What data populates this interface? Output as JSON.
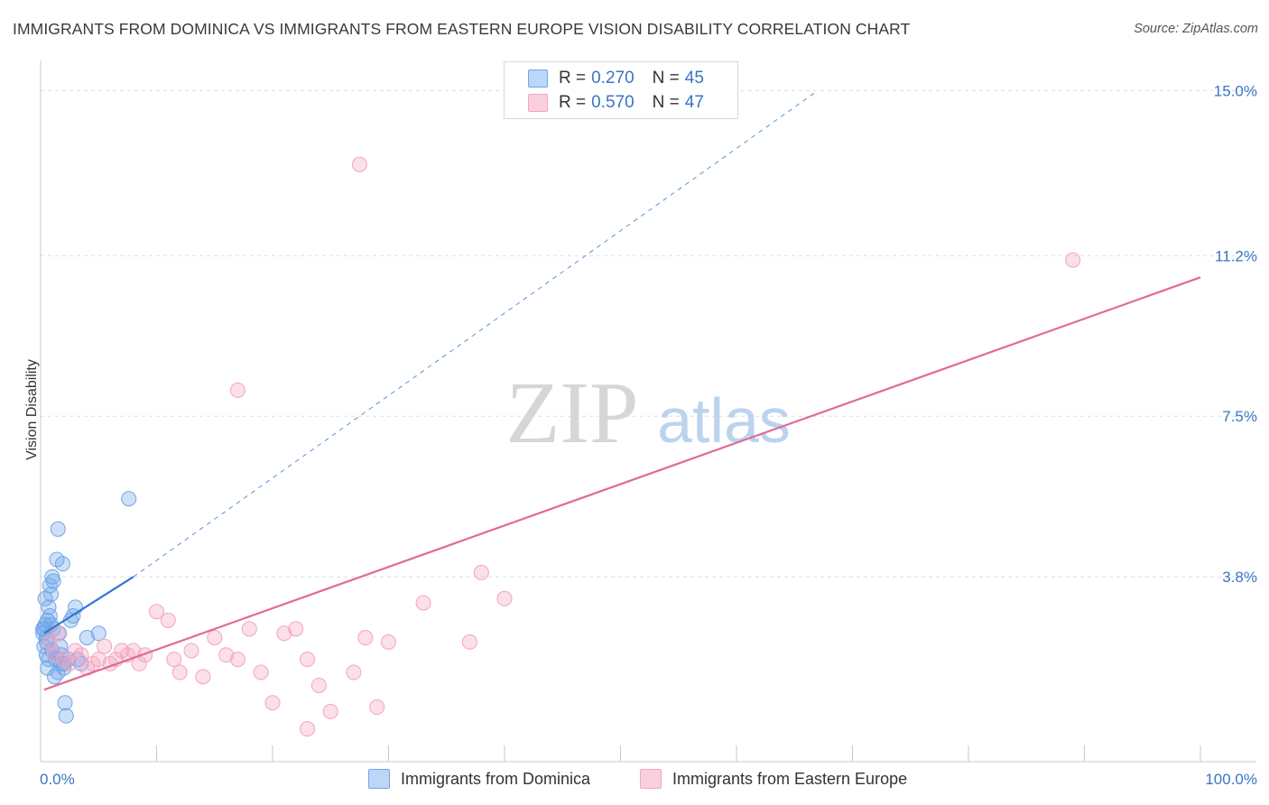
{
  "title": "IMMIGRANTS FROM DOMINICA VS IMMIGRANTS FROM EASTERN EUROPE VISION DISABILITY CORRELATION CHART",
  "source": "Source: ZipAtlas.com",
  "watermark": {
    "zip": "ZIP",
    "atlas": "atlas"
  },
  "legend": {
    "r_label": "R =",
    "n_label": "N =",
    "rows": [
      {
        "r": "0.270",
        "n": "45"
      },
      {
        "r": "0.570",
        "n": "47"
      }
    ]
  },
  "chart_data": {
    "type": "scatter",
    "ylabel": "Vision Disability",
    "xlim": [
      0,
      100
    ],
    "ylim": [
      0,
      15.8
    ],
    "x_tick_labels": {
      "left": "0.0%",
      "right": "100.0%"
    },
    "y_ticks": [
      {
        "value": 3.8,
        "label": "3.8%"
      },
      {
        "value": 7.5,
        "label": "7.5%"
      },
      {
        "value": 11.2,
        "label": "11.2%"
      },
      {
        "value": 15.0,
        "label": "15.0%"
      }
    ],
    "series": [
      {
        "name": "Immigrants from Dominica",
        "color": "#6fa6e8",
        "line_color": "#2f78d0",
        "trend_solid": [
          [
            0.3,
            2.5
          ],
          [
            8.0,
            3.8
          ]
        ],
        "trend_dashed": [
          [
            8.0,
            3.8
          ],
          [
            67.0,
            15.0
          ]
        ],
        "points": [
          [
            0.2,
            2.5
          ],
          [
            0.3,
            2.6
          ],
          [
            0.4,
            2.7
          ],
          [
            0.5,
            2.3
          ],
          [
            0.5,
            2.0
          ],
          [
            0.6,
            2.8
          ],
          [
            0.7,
            3.1
          ],
          [
            0.8,
            3.6
          ],
          [
            0.9,
            3.4
          ],
          [
            1.0,
            3.8
          ],
          [
            1.1,
            2.6
          ],
          [
            1.2,
            2.0
          ],
          [
            1.3,
            1.9
          ],
          [
            1.4,
            4.2
          ],
          [
            1.5,
            4.9
          ],
          [
            1.6,
            2.5
          ],
          [
            1.7,
            2.2
          ],
          [
            1.8,
            1.8
          ],
          [
            1.9,
            4.1
          ],
          [
            2.0,
            1.7
          ],
          [
            2.1,
            0.9
          ],
          [
            2.2,
            0.6
          ],
          [
            2.4,
            1.9
          ],
          [
            2.6,
            2.8
          ],
          [
            2.8,
            2.9
          ],
          [
            3.0,
            3.1
          ],
          [
            3.2,
            1.9
          ],
          [
            3.5,
            1.8
          ],
          [
            4.0,
            2.4
          ],
          [
            5.0,
            2.5
          ],
          [
            0.3,
            2.2
          ],
          [
            0.6,
            1.7
          ],
          [
            0.8,
            2.9
          ],
          [
            1.0,
            2.1
          ],
          [
            1.2,
            1.5
          ],
          [
            0.4,
            3.3
          ],
          [
            0.5,
            2.4
          ],
          [
            0.7,
            1.9
          ],
          [
            1.1,
            3.7
          ],
          [
            1.5,
            1.6
          ],
          [
            1.8,
            2.0
          ],
          [
            0.9,
            2.7
          ],
          [
            7.6,
            5.6
          ],
          [
            0.2,
            2.6
          ],
          [
            2.0,
            1.8
          ]
        ]
      },
      {
        "name": "Immigrants from Eastern Europe",
        "color": "#f4a4bf",
        "line_color": "#e06a95",
        "trend_solid": [
          [
            0.3,
            1.2
          ],
          [
            100.0,
            10.7
          ]
        ],
        "points": [
          [
            0.8,
            2.3
          ],
          [
            1.2,
            2.0
          ],
          [
            1.5,
            2.5
          ],
          [
            2.0,
            1.9
          ],
          [
            2.5,
            1.8
          ],
          [
            3.0,
            2.1
          ],
          [
            3.5,
            2.0
          ],
          [
            4.0,
            1.7
          ],
          [
            4.5,
            1.8
          ],
          [
            5.0,
            1.9
          ],
          [
            5.5,
            2.2
          ],
          [
            6.0,
            1.8
          ],
          [
            6.5,
            1.9
          ],
          [
            7.0,
            2.1
          ],
          [
            7.5,
            2.0
          ],
          [
            8.0,
            2.1
          ],
          [
            8.5,
            1.8
          ],
          [
            9.0,
            2.0
          ],
          [
            10.0,
            3.0
          ],
          [
            11.0,
            2.8
          ],
          [
            11.5,
            1.9
          ],
          [
            12.0,
            1.6
          ],
          [
            13.0,
            2.1
          ],
          [
            14.0,
            1.5
          ],
          [
            15.0,
            2.4
          ],
          [
            16.0,
            2.0
          ],
          [
            17.0,
            1.9
          ],
          [
            18.0,
            2.6
          ],
          [
            19.0,
            1.6
          ],
          [
            20.0,
            0.9
          ],
          [
            21.0,
            2.5
          ],
          [
            22.0,
            2.6
          ],
          [
            23.0,
            1.9
          ],
          [
            24.0,
            1.3
          ],
          [
            25.0,
            0.7
          ],
          [
            27.0,
            1.6
          ],
          [
            28.0,
            2.4
          ],
          [
            29.0,
            0.8
          ],
          [
            30.0,
            2.3
          ],
          [
            33.0,
            3.2
          ],
          [
            37.0,
            2.3
          ],
          [
            38.0,
            3.9
          ],
          [
            40.0,
            3.3
          ],
          [
            17.0,
            8.1
          ],
          [
            27.5,
            13.3
          ],
          [
            89.0,
            11.1
          ],
          [
            23.0,
            0.3
          ]
        ]
      }
    ]
  }
}
